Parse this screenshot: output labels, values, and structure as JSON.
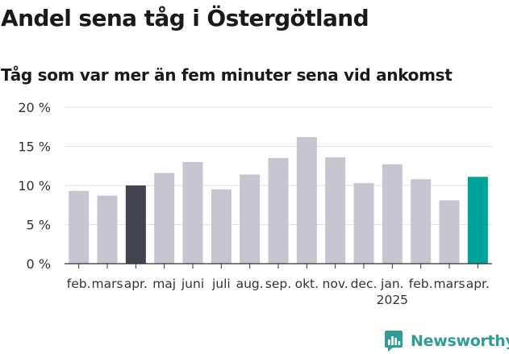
{
  "header": {
    "title": "Andel sena tåg i Östergötland",
    "subtitle": "Tåg som var mer än fem minuter sena vid ankomst"
  },
  "chart_data": {
    "type": "bar",
    "categories": [
      "feb.",
      "mars",
      "apr.",
      "maj",
      "juni",
      "juli",
      "aug.",
      "sep.",
      "okt.",
      "nov.",
      "dec.",
      "jan.",
      "feb.",
      "mars",
      "apr."
    ],
    "values": [
      9.3,
      8.7,
      10.0,
      11.6,
      13.0,
      9.5,
      11.4,
      13.5,
      16.2,
      13.6,
      10.3,
      12.7,
      10.8,
      8.1,
      11.1
    ],
    "year_label": "2025",
    "year_label_index": 11,
    "yticks": [
      0,
      5,
      10,
      15,
      20
    ],
    "ytick_suffix": " %",
    "ylim": [
      0,
      20
    ],
    "grid": true,
    "colors": {
      "default": "#c6c5d0",
      "highlight_dark": "#43424f",
      "highlight_accent": "#00a39a"
    },
    "highlight_dark_index": 2,
    "highlight_accent_index": 14
  },
  "brand": {
    "name": "Newsworthy",
    "color": "#2f9c95"
  }
}
